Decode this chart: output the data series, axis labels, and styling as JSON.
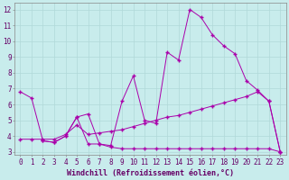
{
  "background_color": "#c8ecec",
  "grid_color": "#b0d8d8",
  "line_color": "#aa00aa",
  "xlabel": "Windchill (Refroidissement éolien,°C)",
  "xlim": [
    -0.5,
    23.5
  ],
  "ylim": [
    2.8,
    12.4
  ],
  "xticks": [
    0,
    1,
    2,
    3,
    4,
    5,
    6,
    7,
    8,
    9,
    10,
    11,
    12,
    13,
    14,
    15,
    16,
    17,
    18,
    19,
    20,
    21,
    22,
    23
  ],
  "yticks": [
    3,
    4,
    5,
    6,
    7,
    8,
    9,
    10,
    11,
    12
  ],
  "line1_x": [
    0,
    1,
    2,
    3,
    4,
    5,
    6,
    7,
    8,
    9,
    10,
    11,
    12,
    13,
    14,
    15,
    16,
    17,
    18,
    19,
    20,
    21,
    22,
    23
  ],
  "line1_y": [
    6.8,
    6.4,
    3.7,
    3.6,
    4.0,
    5.2,
    5.4,
    3.5,
    3.4,
    6.2,
    7.8,
    5.0,
    4.8,
    9.3,
    8.8,
    12.0,
    11.5,
    10.4,
    9.7,
    9.2,
    7.5,
    6.9,
    6.2,
    3.0
  ],
  "line2_x": [
    0,
    1,
    2,
    3,
    4,
    5,
    6,
    7,
    8,
    9,
    10,
    11,
    12,
    13,
    14,
    15,
    16,
    17,
    18,
    19,
    20,
    21,
    22,
    23
  ],
  "line2_y": [
    3.8,
    3.8,
    3.8,
    3.8,
    4.1,
    4.7,
    4.1,
    4.2,
    4.3,
    4.4,
    4.6,
    4.8,
    5.0,
    5.2,
    5.3,
    5.5,
    5.7,
    5.9,
    6.1,
    6.3,
    6.5,
    6.8,
    6.2,
    3.0
  ],
  "line3_x": [
    2,
    3,
    4,
    5,
    6,
    7,
    8,
    9,
    10,
    11,
    12,
    13,
    14,
    15,
    16,
    17,
    18,
    19,
    20,
    21,
    22,
    23
  ],
  "line3_y": [
    3.7,
    3.6,
    4.0,
    5.2,
    3.5,
    3.5,
    3.3,
    3.2,
    3.2,
    3.2,
    3.2,
    3.2,
    3.2,
    3.2,
    3.2,
    3.2,
    3.2,
    3.2,
    3.2,
    3.2,
    3.2,
    3.0
  ],
  "tick_fontsize": 5.5,
  "xlabel_fontsize": 6.0
}
